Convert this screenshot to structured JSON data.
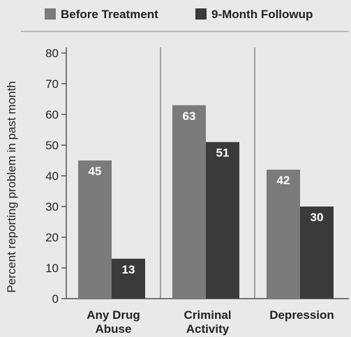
{
  "chart_data": {
    "type": "bar",
    "categories": [
      [
        "Any Drug",
        "Abuse"
      ],
      [
        "Criminal",
        "Activity"
      ],
      [
        "Depression"
      ]
    ],
    "series": [
      {
        "name": "Before Treatment",
        "values": [
          45,
          63,
          42
        ],
        "color": "#7b7b7b"
      },
      {
        "name": "9-Month Followup",
        "values": [
          13,
          51,
          30
        ],
        "color": "#3a3a3a"
      }
    ],
    "ylabel": "Percent reporting problem in past month",
    "ylim": [
      0,
      80
    ],
    "yticks": [
      0,
      10,
      20,
      30,
      40,
      50,
      60,
      70,
      80
    ],
    "legend_position": "top",
    "grid": false
  }
}
